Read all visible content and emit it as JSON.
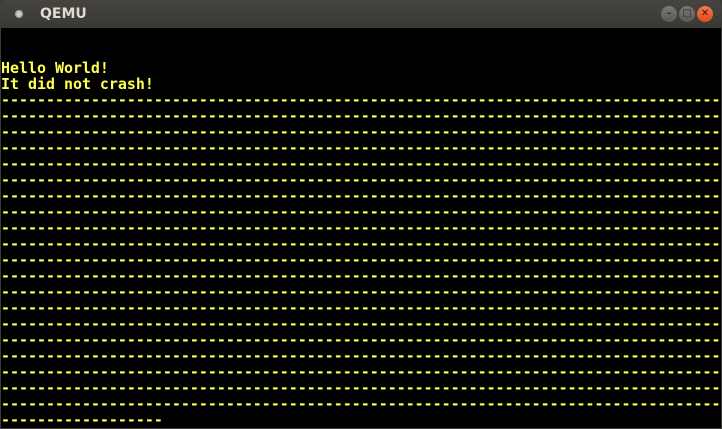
{
  "window": {
    "title": "QEMU",
    "minimize_icon": "minimize-icon",
    "maximize_icon": "maximize-icon",
    "close_icon": "close-icon"
  },
  "screen": {
    "text_color": "#ffff55",
    "background": "#000000",
    "lines": [
      "",
      "",
      "Hello World!",
      "It did not crash!",
      "--------------------------------------------------------------------------------",
      "--------------------------------------------------------------------------------",
      "--------------------------------------------------------------------------------",
      "--------------------------------------------------------------------------------",
      "--------------------------------------------------------------------------------",
      "--------------------------------------------------------------------------------",
      "--------------------------------------------------------------------------------",
      "--------------------------------------------------------------------------------",
      "--------------------------------------------------------------------------------",
      "--------------------------------------------------------------------------------",
      "--------------------------------------------------------------------------------",
      "--------------------------------------------------------------------------------",
      "--------------------------------------------------------------------------------",
      "--------------------------------------------------------------------------------",
      "--------------------------------------------------------------------------------",
      "--------------------------------------------------------------------------------",
      "--------------------------------------------------------------------------------",
      "--------------------------------------------------------------------------------",
      "--------------------------------------------------------------------------------",
      "--------------------------------------------------------------------------------",
      "------------------"
    ]
  }
}
